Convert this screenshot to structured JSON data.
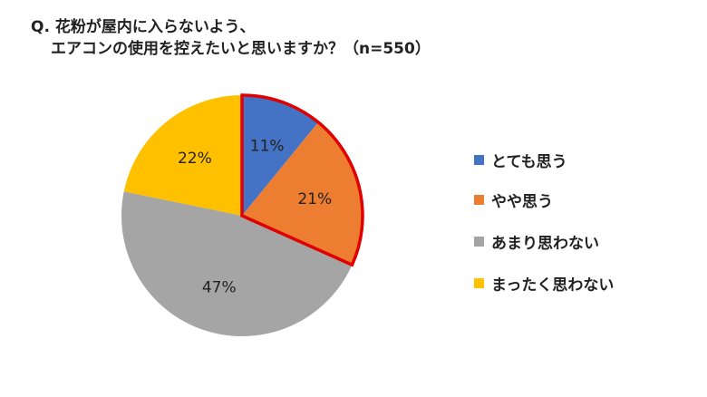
{
  "title": {
    "line1": "Q. 花粉が屋内に入らないよう、",
    "line2": "エアコンの使用を控えたいと思いますか？（n=550）"
  },
  "chart_data": {
    "type": "pie",
    "title": "Q. 花粉が屋内に入らないよう、エアコンの使用を控えたいと思いますか？（n=550）",
    "categories": [
      "とても思う",
      "やや思う",
      "あまり思わない",
      "まったく思わない"
    ],
    "values": [
      11,
      21,
      47,
      22
    ],
    "labels": [
      "11%",
      "21%",
      "47%",
      "22%"
    ],
    "colors": [
      "#4472C4",
      "#ED7D31",
      "#A5A5A5",
      "#FFC000"
    ],
    "highlight": {
      "slices": [
        "とても思う",
        "やや思う"
      ],
      "outline_color": "#E00000"
    },
    "legend_position": "right",
    "sample_size": "n=550"
  },
  "legend": [
    {
      "label": "とても思う",
      "color": "#4472C4"
    },
    {
      "label": "やや思う",
      "color": "#ED7D31"
    },
    {
      "label": "あまり思わない",
      "color": "#A5A5A5"
    },
    {
      "label": "まったく思わない",
      "color": "#FFC000"
    }
  ]
}
